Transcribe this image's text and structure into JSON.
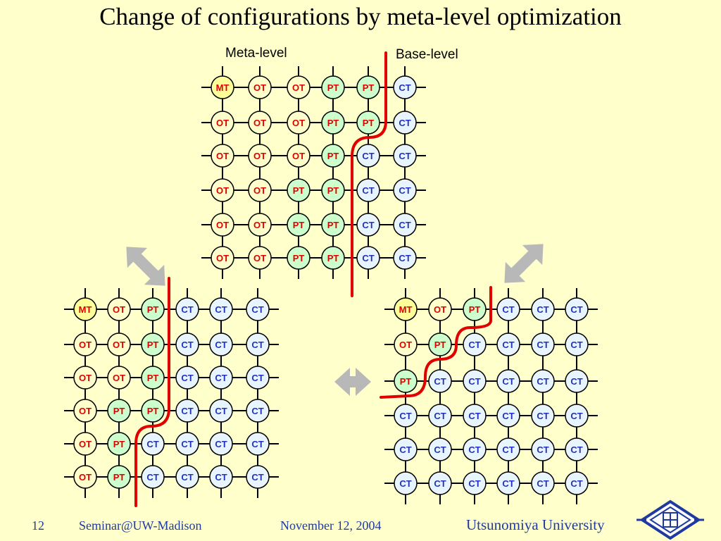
{
  "title": "Change of configurations by meta-level optimization",
  "labels": {
    "meta_level": "Meta-level",
    "base_level": "Base-level"
  },
  "footer": {
    "slide_number": "12",
    "venue": "Seminar@UW-Madison",
    "date": "November 12, 2004",
    "university": "Utsunomiya University"
  },
  "colors": {
    "MT": {
      "fill": "#ffff99",
      "text": "#e00000"
    },
    "OT": {
      "fill": "#ffffcc",
      "text": "#e00000"
    },
    "PT": {
      "fill": "#ccffcc",
      "text": "#e00000"
    },
    "CT": {
      "fill": "#e8f4ff",
      "text": "#2233bb"
    },
    "boundary": "#e00000",
    "arrow": "#b8b8b8"
  },
  "grids": [
    {
      "name": "top",
      "rows": [
        [
          "MT",
          "OT",
          "OT",
          "PT",
          "PT",
          "CT"
        ],
        [
          "OT",
          "OT",
          "OT",
          "PT",
          "PT",
          "CT"
        ],
        [
          "OT",
          "OT",
          "OT",
          "PT",
          "CT",
          "CT"
        ],
        [
          "OT",
          "OT",
          "PT",
          "PT",
          "CT",
          "CT"
        ],
        [
          "OT",
          "OT",
          "PT",
          "PT",
          "CT",
          "CT"
        ],
        [
          "OT",
          "OT",
          "PT",
          "PT",
          "CT",
          "CT"
        ]
      ]
    },
    {
      "name": "bottom-left",
      "rows": [
        [
          "MT",
          "OT",
          "PT",
          "CT",
          "CT",
          "CT"
        ],
        [
          "OT",
          "OT",
          "PT",
          "CT",
          "CT",
          "CT"
        ],
        [
          "OT",
          "OT",
          "PT",
          "CT",
          "CT",
          "CT"
        ],
        [
          "OT",
          "PT",
          "PT",
          "CT",
          "CT",
          "CT"
        ],
        [
          "OT",
          "PT",
          "CT",
          "CT",
          "CT",
          "CT"
        ],
        [
          "OT",
          "PT",
          "CT",
          "CT",
          "CT",
          "CT"
        ]
      ]
    },
    {
      "name": "bottom-right",
      "rows": [
        [
          "MT",
          "OT",
          "PT",
          "CT",
          "CT",
          "CT"
        ],
        [
          "OT",
          "PT",
          "CT",
          "CT",
          "CT",
          "CT"
        ],
        [
          "PT",
          "CT",
          "CT",
          "CT",
          "CT",
          "CT"
        ],
        [
          "CT",
          "CT",
          "CT",
          "CT",
          "CT",
          "CT"
        ],
        [
          "CT",
          "CT",
          "CT",
          "CT",
          "CT",
          "CT"
        ],
        [
          "CT",
          "CT",
          "CT",
          "CT",
          "CT",
          "CT"
        ]
      ]
    }
  ],
  "arrows": [
    {
      "name": "arrow-left-diagonal",
      "icon": "double-arrow-icon"
    },
    {
      "name": "arrow-right-diagonal",
      "icon": "double-arrow-icon"
    },
    {
      "name": "arrow-horizontal",
      "icon": "double-arrow-icon"
    }
  ],
  "logo_icon": "university-logo-icon"
}
